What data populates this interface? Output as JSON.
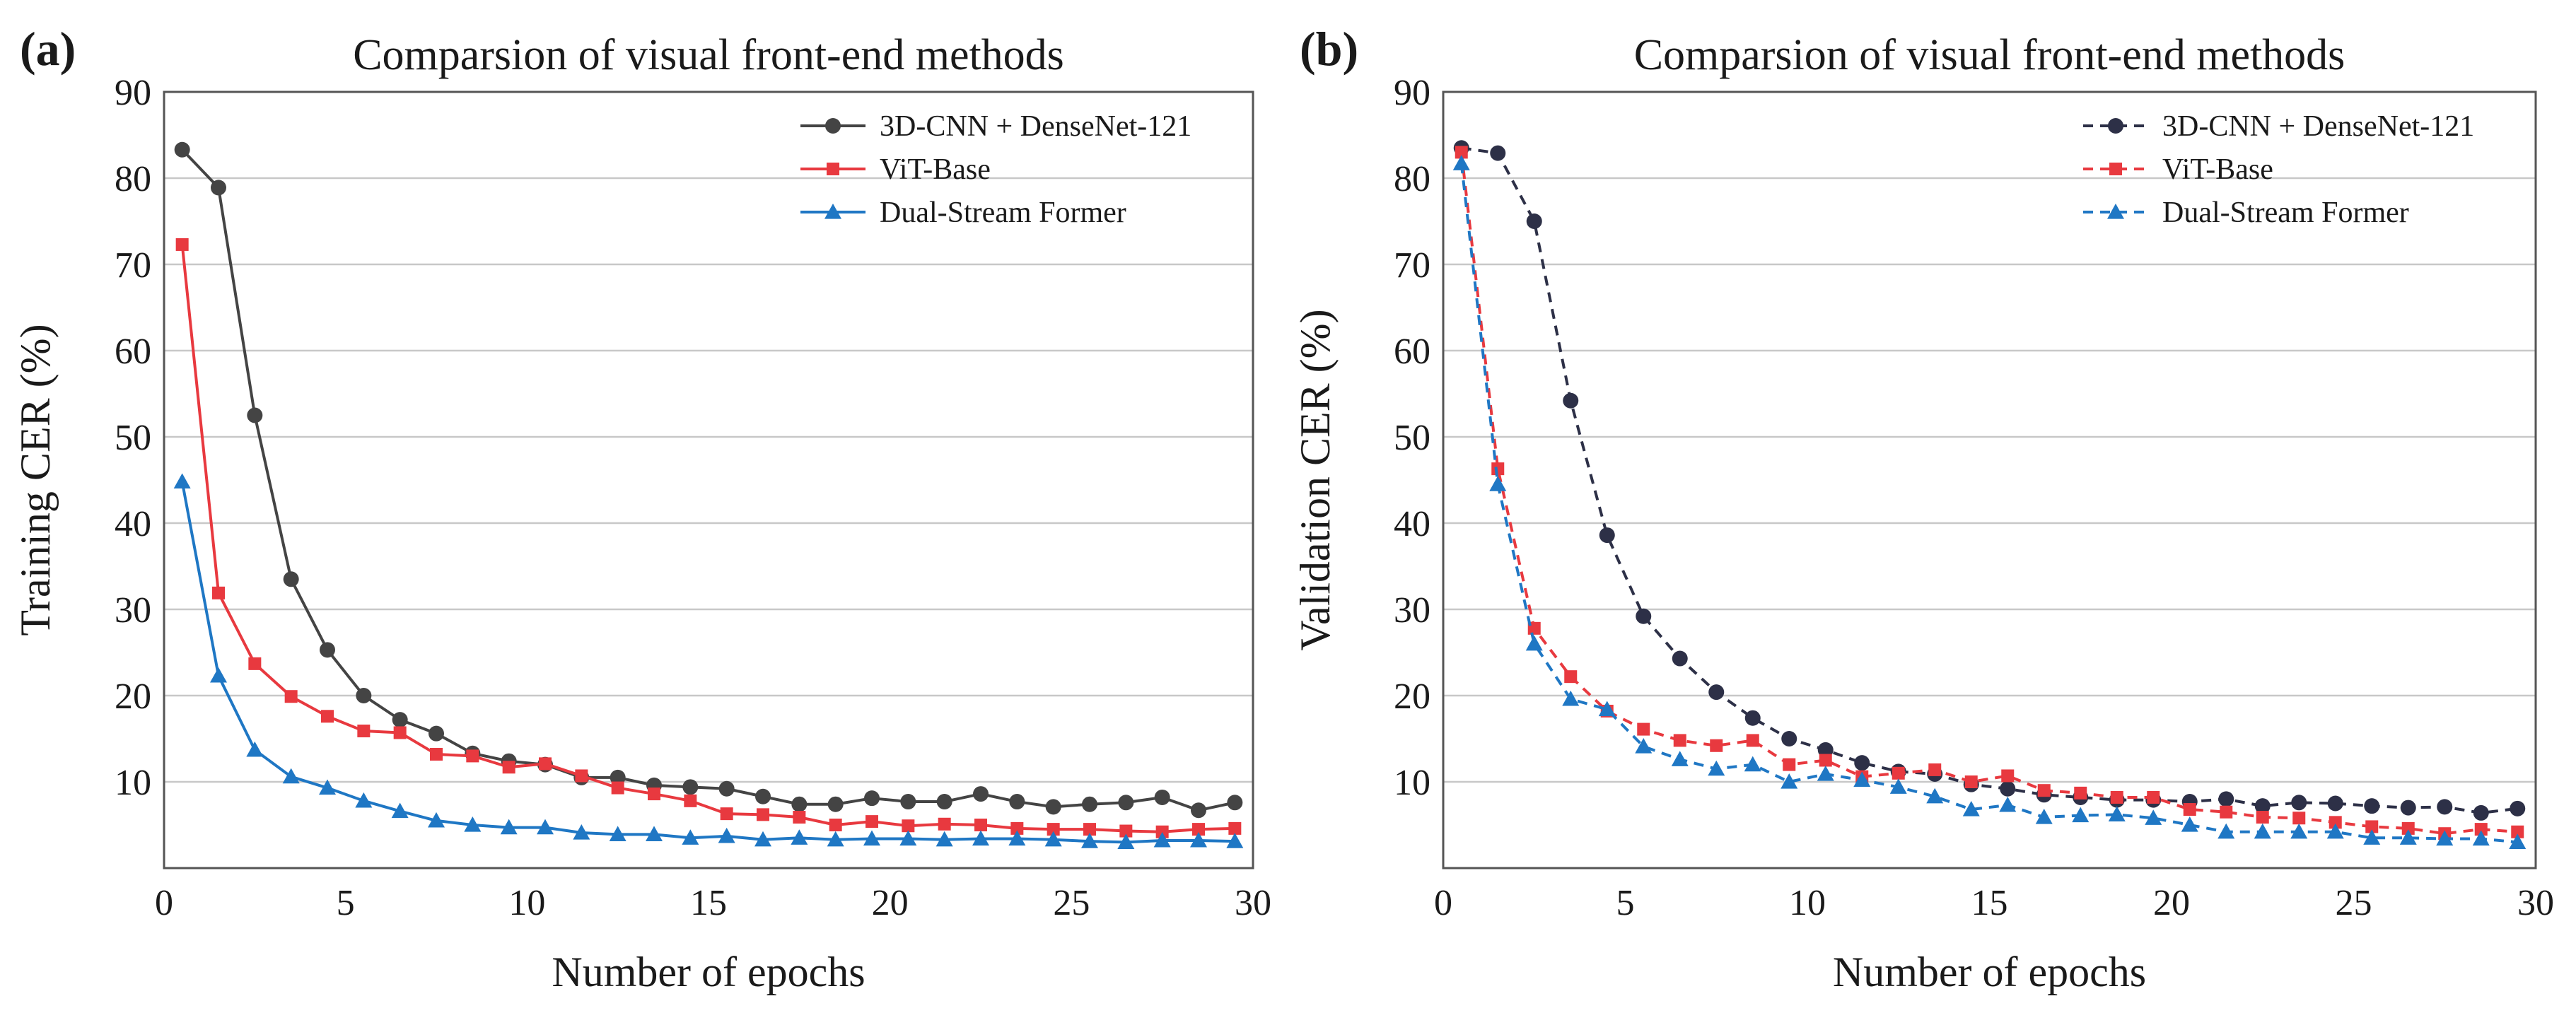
{
  "chart_data": [
    {
      "panel_label": "(a)",
      "type": "line",
      "title": "Comparsion of visual front-end methods",
      "xlabel": "Number of epochs",
      "ylabel": "Training CER (%)",
      "xlim": [
        0,
        30
      ],
      "ylim": [
        0,
        90
      ],
      "xticks": [
        0,
        5,
        10,
        15,
        20,
        25,
        30
      ],
      "yticks": [
        10,
        20,
        30,
        40,
        50,
        60,
        70,
        80,
        90
      ],
      "grid": "horizontal",
      "legend_position": "top-right",
      "x": [
        0.5,
        1.5,
        2.5,
        3.5,
        4.5,
        5.5,
        6.5,
        7.5,
        8.5,
        9.5,
        10.5,
        11.5,
        12.5,
        13.5,
        14.5,
        15.5,
        16.5,
        17.5,
        18.5,
        19.5,
        20.5,
        21.5,
        22.5,
        23.5,
        24.5,
        25.5,
        26.5,
        27.5,
        28.5,
        29.5
      ],
      "series": [
        {
          "name": "3D-CNN + DenseNet-121",
          "color": "#444444",
          "marker": "circle",
          "dash": "solid",
          "values": [
            83.3,
            78.9,
            52.5,
            33.5,
            25.3,
            20.0,
            17.2,
            15.6,
            13.3,
            12.4,
            12.0,
            10.5,
            10.5,
            9.6,
            9.4,
            9.2,
            8.3,
            7.4,
            7.4,
            8.1,
            7.7,
            7.7,
            8.6,
            7.7,
            7.1,
            7.4,
            7.6,
            8.2,
            6.7,
            7.6
          ]
        },
        {
          "name": "ViT-Base",
          "color": "#e8393f",
          "marker": "square",
          "dash": "solid",
          "values": [
            72.3,
            31.9,
            23.7,
            19.9,
            17.6,
            15.9,
            15.7,
            13.2,
            13.0,
            11.7,
            12.1,
            10.7,
            9.3,
            8.6,
            7.8,
            6.3,
            6.2,
            5.9,
            5.0,
            5.4,
            4.9,
            5.1,
            5.0,
            4.6,
            4.5,
            4.5,
            4.3,
            4.2,
            4.5,
            4.6
          ]
        },
        {
          "name": "Dual-Stream Former",
          "color": "#1f77c4",
          "marker": "triangle",
          "dash": "solid",
          "values": [
            44.8,
            22.3,
            13.7,
            10.6,
            9.3,
            7.8,
            6.6,
            5.5,
            5.0,
            4.7,
            4.7,
            4.1,
            3.9,
            3.9,
            3.5,
            3.7,
            3.3,
            3.5,
            3.3,
            3.4,
            3.4,
            3.3,
            3.4,
            3.4,
            3.3,
            3.1,
            3.0,
            3.2,
            3.2,
            3.1
          ]
        }
      ]
    },
    {
      "panel_label": "(b)",
      "type": "line",
      "title": "Comparsion of visual front-end methods",
      "xlabel": "Number of epochs",
      "ylabel": "Validation CER (%)",
      "xlim": [
        0,
        30
      ],
      "ylim": [
        0,
        90
      ],
      "xticks": [
        0,
        5,
        10,
        15,
        20,
        25,
        30
      ],
      "yticks": [
        10,
        20,
        30,
        40,
        50,
        60,
        70,
        80,
        90
      ],
      "grid": "horizontal",
      "legend_position": "top-right",
      "x": [
        0.5,
        1.5,
        2.5,
        3.5,
        4.5,
        5.5,
        6.5,
        7.5,
        8.5,
        9.5,
        10.5,
        11.5,
        12.5,
        13.5,
        14.5,
        15.5,
        16.5,
        17.5,
        18.5,
        19.5,
        20.5,
        21.5,
        22.5,
        23.5,
        24.5,
        25.5,
        26.5,
        27.5,
        28.5,
        29.5
      ],
      "series": [
        {
          "name": "3D-CNN + DenseNet-121",
          "color": "#2d3047",
          "marker": "circle",
          "dash": "dashed",
          "values": [
            83.5,
            82.9,
            75.0,
            54.2,
            38.6,
            29.2,
            24.3,
            20.4,
            17.4,
            15.0,
            13.7,
            12.2,
            11.2,
            10.9,
            9.7,
            9.2,
            8.5,
            8.2,
            7.9,
            7.9,
            7.7,
            8.0,
            7.2,
            7.6,
            7.5,
            7.2,
            7.0,
            7.1,
            6.4,
            6.9
          ]
        },
        {
          "name": "ViT-Base",
          "color": "#e8393f",
          "marker": "square",
          "dash": "dashed",
          "values": [
            83.0,
            46.3,
            27.8,
            22.2,
            18.2,
            16.1,
            14.8,
            14.2,
            14.8,
            12.0,
            12.5,
            10.6,
            11.0,
            11.4,
            10.0,
            10.7,
            9.0,
            8.7,
            8.2,
            8.2,
            6.8,
            6.5,
            5.9,
            5.8,
            5.3,
            4.8,
            4.6,
            4.0,
            4.5,
            4.2
          ]
        },
        {
          "name": "Dual-Stream Former",
          "color": "#1f77c4",
          "marker": "triangle",
          "dash": "dashed",
          "values": [
            81.7,
            44.5,
            26.0,
            19.6,
            18.4,
            14.1,
            12.6,
            11.5,
            12.0,
            10.0,
            10.9,
            10.2,
            9.4,
            8.3,
            6.8,
            7.3,
            5.9,
            6.1,
            6.2,
            5.8,
            5.0,
            4.2,
            4.2,
            4.2,
            4.2,
            3.5,
            3.5,
            3.4,
            3.4,
            3.0
          ]
        }
      ]
    }
  ]
}
